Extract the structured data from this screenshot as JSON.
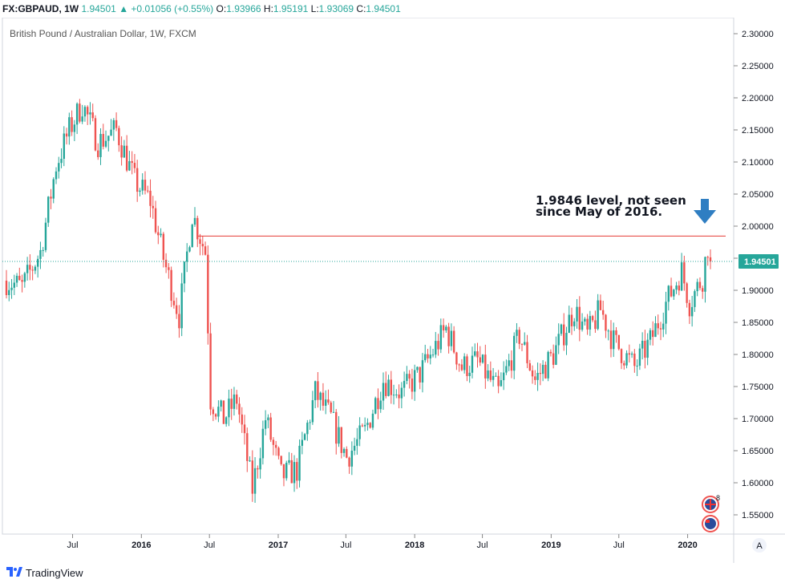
{
  "header": {
    "symbol": "FX:GBPAUD, 1W",
    "last": "1.94501",
    "change_arrow": "▲",
    "change": "+0.01056 (+0.55%)",
    "o_label": "O:",
    "o": "1.93966",
    "h_label": "H:",
    "h": "1.95191",
    "l_label": "L:",
    "l": "1.93069",
    "c_label": "C:",
    "c": "1.94501"
  },
  "footer": {
    "brand": "TradingView",
    "icon": "tradingview-logo-icon"
  },
  "axis_button": "A",
  "colors": {
    "up": "#26a69a",
    "down": "#ef5350",
    "hline": "#e53935",
    "arrow": "#2f7ec2",
    "last_price": "#26a69a"
  },
  "chart_data": {
    "type": "candlestick",
    "title": "British Pound / Australian Dollar, 1W, FXCM",
    "ylim": [
      1.52,
      2.32
    ],
    "y_ticks": [
      "2.30000",
      "2.25000",
      "2.20000",
      "2.15000",
      "2.10000",
      "2.05000",
      "2.00000",
      "1.95000",
      "1.90000",
      "1.85000",
      "1.80000",
      "1.75000",
      "1.70000",
      "1.65000",
      "1.60000",
      "1.55000"
    ],
    "x_ticks": [
      {
        "label": "Jul",
        "date": "2015-07"
      },
      {
        "label": "2016",
        "date": "2016-01"
      },
      {
        "label": "Jul",
        "date": "2016-07"
      },
      {
        "label": "2017",
        "date": "2017-01"
      },
      {
        "label": "Jul",
        "date": "2017-07"
      },
      {
        "label": "2018",
        "date": "2018-01"
      },
      {
        "label": "Jul",
        "date": "2018-07"
      },
      {
        "label": "2019",
        "date": "2019-01"
      },
      {
        "label": "Jul",
        "date": "2019-07"
      },
      {
        "label": "2020",
        "date": "2020-01"
      }
    ],
    "start_date": "2015-01-05",
    "end_date": "2020-03-02",
    "anchors": [
      {
        "date": "2015-01-05",
        "close": 1.915
      },
      {
        "date": "2015-02-16",
        "close": 1.905
      },
      {
        "date": "2015-04-06",
        "close": 1.96
      },
      {
        "date": "2015-05-18",
        "close": 2.095
      },
      {
        "date": "2015-06-22",
        "close": 2.15
      },
      {
        "date": "2015-07-27",
        "close": 2.19
      },
      {
        "date": "2015-09-07",
        "close": 2.13
      },
      {
        "date": "2015-10-26",
        "close": 2.15
      },
      {
        "date": "2015-12-14",
        "close": 2.07
      },
      {
        "date": "2016-01-25",
        "close": 2.04
      },
      {
        "date": "2016-02-29",
        "close": 1.95
      },
      {
        "date": "2016-04-11",
        "close": 1.86
      },
      {
        "date": "2016-05-16",
        "close": 2.02
      },
      {
        "date": "2016-06-20",
        "close": 1.96
      },
      {
        "date": "2016-07-04",
        "close": 1.73
      },
      {
        "date": "2016-08-08",
        "close": 1.7
      },
      {
        "date": "2016-09-12",
        "close": 1.73
      },
      {
        "date": "2016-10-24",
        "close": 1.59
      },
      {
        "date": "2016-11-28",
        "close": 1.7
      },
      {
        "date": "2017-01-09",
        "close": 1.61
      },
      {
        "date": "2017-02-20",
        "close": 1.62
      },
      {
        "date": "2017-04-10",
        "close": 1.74
      },
      {
        "date": "2017-05-22",
        "close": 1.7
      },
      {
        "date": "2017-07-03",
        "close": 1.64
      },
      {
        "date": "2017-08-21",
        "close": 1.68
      },
      {
        "date": "2017-10-09",
        "close": 1.76
      },
      {
        "date": "2017-11-27",
        "close": 1.74
      },
      {
        "date": "2018-01-15",
        "close": 1.77
      },
      {
        "date": "2018-03-26",
        "close": 1.84
      },
      {
        "date": "2018-05-07",
        "close": 1.78
      },
      {
        "date": "2018-06-18",
        "close": 1.79
      },
      {
        "date": "2018-08-13",
        "close": 1.74
      },
      {
        "date": "2018-10-08",
        "close": 1.83
      },
      {
        "date": "2018-11-19",
        "close": 1.76
      },
      {
        "date": "2019-01-07",
        "close": 1.8
      },
      {
        "date": "2019-03-04",
        "close": 1.87
      },
      {
        "date": "2019-04-08",
        "close": 1.83
      },
      {
        "date": "2019-05-13",
        "close": 1.87
      },
      {
        "date": "2019-06-17",
        "close": 1.82
      },
      {
        "date": "2019-08-12",
        "close": 1.78
      },
      {
        "date": "2019-09-23",
        "close": 1.82
      },
      {
        "date": "2019-11-04",
        "close": 1.88
      },
      {
        "date": "2019-12-16",
        "close": 1.93
      },
      {
        "date": "2020-01-06",
        "close": 1.88
      },
      {
        "date": "2020-02-10",
        "close": 1.92
      },
      {
        "date": "2020-02-24",
        "close": 1.97
      },
      {
        "date": "2020-03-02",
        "close": 1.945
      }
    ],
    "horizontal_line": {
      "value": 1.9846
    },
    "last_price": {
      "value": 1.94501,
      "label": "1.94501"
    },
    "annotation": {
      "line1": "1.9846 level, not seen",
      "line2": "since May of 2016."
    },
    "markers": [
      {
        "icon": "uk-flag-icon",
        "badge": "8"
      },
      {
        "icon": "australia-flag-icon"
      }
    ]
  }
}
